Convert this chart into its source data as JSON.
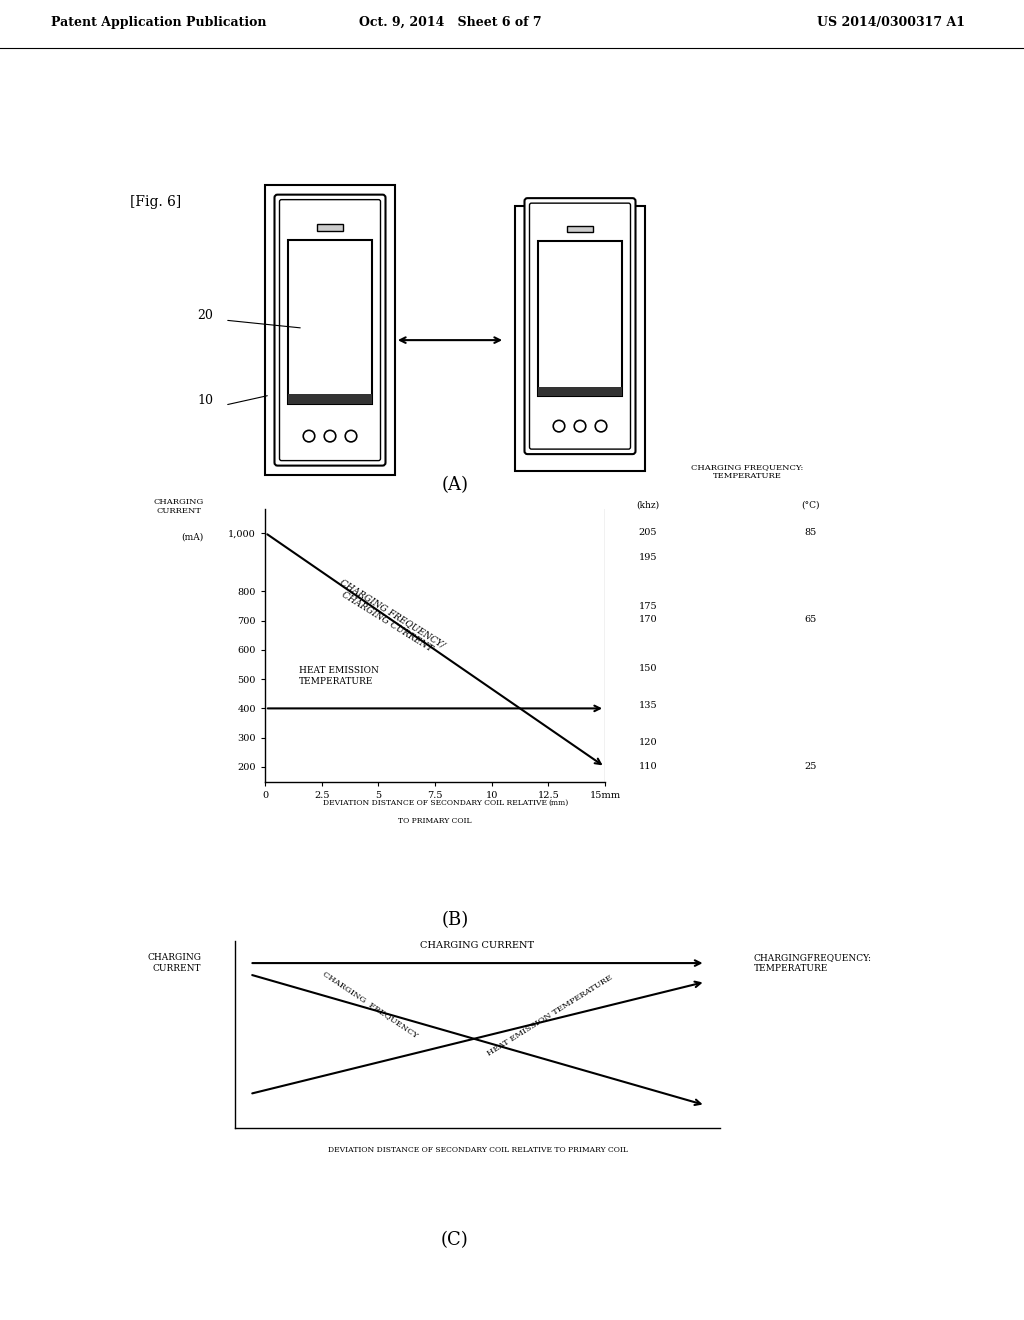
{
  "header_left": "Patent Application Publication",
  "header_center": "Oct. 9, 2014   Sheet 6 of 7",
  "header_right": "US 2014/0300317 A1",
  "fig_label": "[Fig. 6]",
  "section_a_label": "(A)",
  "section_b_label": "(B)",
  "section_c_label": "(C)",
  "bg_color": "#ffffff",
  "chart_b": {
    "left_yticks": [
      200,
      300,
      400,
      500,
      600,
      700,
      800,
      1000
    ],
    "left_ytick_labels": [
      "200",
      "300",
      "400",
      "500",
      "600",
      "700",
      "800",
      "1,000"
    ],
    "right_yticks_khz": [
      110,
      120,
      135,
      150,
      170,
      175,
      195,
      205
    ],
    "right_ytick_labels_khz": [
      "110",
      "120",
      "135",
      "150",
      "170",
      "175",
      "195",
      "205"
    ],
    "degc_data": [
      [
        110,
        "25"
      ],
      [
        170,
        "65"
      ],
      [
        205,
        "85"
      ]
    ],
    "xticks": [
      0,
      2.5,
      5,
      7.5,
      10,
      12.5,
      15
    ],
    "xtick_labels": [
      "0",
      "2.5",
      "5",
      "7.5",
      "10",
      "12.5",
      "15mm"
    ],
    "line1_x": [
      0,
      15
    ],
    "line1_y": [
      1000,
      200
    ],
    "line2_x": [
      0,
      15
    ],
    "line2_y": [
      400,
      400
    ],
    "ymin": 150,
    "ymax": 1080
  }
}
